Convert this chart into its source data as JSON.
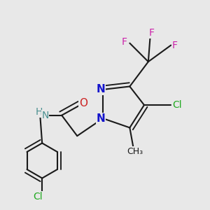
{
  "background_color": "#e8e8e8",
  "bond_color": "#1a1a1a",
  "bond_width": 1.5,
  "figsize": [
    3.0,
    3.0
  ],
  "dpi": 100,
  "colors": {
    "N": "#1414cc",
    "F": "#cc22aa",
    "Cl": "#22aa22",
    "O": "#cc2222",
    "NH": "#4a9090",
    "C": "#1a1a1a"
  }
}
